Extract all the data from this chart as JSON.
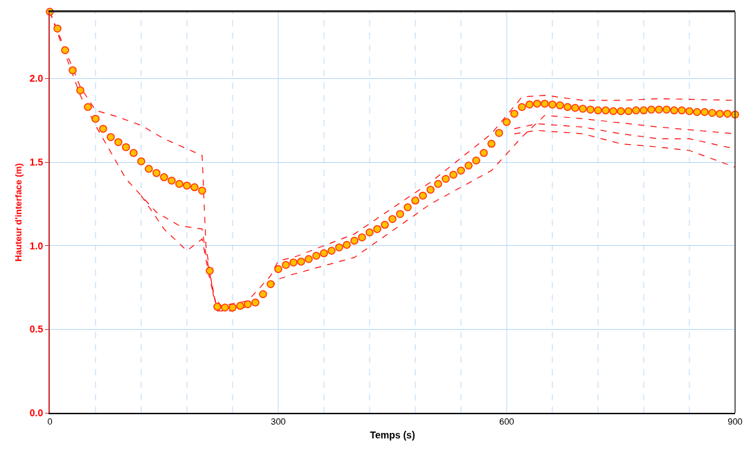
{
  "chart_data": {
    "type": "line",
    "xlabel": "Temps (s)",
    "ylabel": "Hauteur d'interface (m)",
    "xlim": [
      0,
      900
    ],
    "ylim": [
      0,
      2.4
    ],
    "xticks": [
      0,
      {
        "value": 60,
        "label": null
      },
      {
        "value": 120,
        "label": null
      },
      {
        "value": 180,
        "label": null
      },
      {
        "value": 240,
        "label": null
      },
      300,
      {
        "value": 360,
        "label": null
      },
      {
        "value": 420,
        "label": null
      },
      {
        "value": 480,
        "label": null
      },
      {
        "value": 540,
        "label": null
      },
      600,
      {
        "value": 660,
        "label": null
      },
      {
        "value": 720,
        "label": null
      },
      {
        "value": 780,
        "label": null
      },
      {
        "value": 840,
        "label": null
      },
      900
    ],
    "yticks": [
      {
        "value": 0,
        "label": "0.0"
      },
      {
        "value": 0.5,
        "label": "0.5"
      },
      {
        "value": 1.0,
        "label": "1.0"
      },
      {
        "value": 1.5,
        "label": "1.5"
      },
      {
        "value": 2.0,
        "label": "2.0"
      }
    ],
    "grid": true,
    "series": [
      {
        "color": "#ff0000",
        "line_style": "dashed",
        "marker": "none",
        "x": [
          0,
          40,
          60,
          90,
          120,
          150,
          180,
          200,
          205,
          215,
          225,
          260,
          290,
          300,
          320,
          400,
          500,
          580,
          620,
          650,
          700,
          750,
          800,
          900
        ],
        "values": [
          2.4,
          1.95,
          1.81,
          1.77,
          1.72,
          1.64,
          1.58,
          1.54,
          1.0,
          0.7,
          0.64,
          0.67,
          0.82,
          0.91,
          0.93,
          1.07,
          1.38,
          1.67,
          1.89,
          1.9,
          1.87,
          1.87,
          1.88,
          1.87
        ]
      },
      {
        "color": "#ff0000",
        "line_style": "dashed",
        "marker": "none",
        "x": [
          0,
          40,
          60,
          100,
          140,
          170,
          200,
          205,
          220,
          240,
          270,
          300,
          320,
          400,
          500,
          580,
          620,
          650,
          700,
          800,
          900
        ],
        "values": [
          2.4,
          1.9,
          1.72,
          1.4,
          1.2,
          1.12,
          1.1,
          0.95,
          0.61,
          0.61,
          0.65,
          0.8,
          0.83,
          0.93,
          1.25,
          1.45,
          1.65,
          1.78,
          1.76,
          1.71,
          1.67
        ]
      },
      {
        "color": "#ff0000",
        "line_style": "dashed",
        "marker": "none",
        "x": [
          120,
          150,
          180,
          200,
          210,
          220
        ],
        "values": [
          1.3,
          1.1,
          0.97,
          1.04,
          0.8,
          0.62
        ]
      },
      {
        "color": "#ff0000",
        "line_style": "dashed",
        "marker": "none",
        "x": [
          610,
          640,
          700,
          750,
          800,
          840,
          900
        ],
        "values": [
          1.7,
          1.73,
          1.71,
          1.67,
          1.64,
          1.64,
          1.58
        ]
      },
      {
        "color": "#ff0000",
        "line_style": "dashed",
        "marker": "none",
        "x": [
          610,
          640,
          700,
          750,
          800,
          840,
          900
        ],
        "values": [
          1.67,
          1.69,
          1.67,
          1.61,
          1.59,
          1.57,
          1.47
        ]
      },
      {
        "type": "scatter",
        "color": "#ffc000",
        "marker": "circle",
        "x": [
          0,
          10,
          20,
          30,
          40,
          50,
          60,
          70,
          80,
          90,
          100,
          110,
          120,
          130,
          140,
          150,
          160,
          170,
          180,
          190,
          200,
          210,
          220,
          230,
          240,
          250,
          260,
          270,
          280,
          290,
          300,
          310,
          320,
          330,
          340,
          350,
          360,
          370,
          380,
          390,
          400,
          410,
          420,
          430,
          440,
          450,
          460,
          470,
          480,
          490,
          500,
          510,
          520,
          530,
          540,
          550,
          560,
          570,
          580,
          590,
          600,
          610,
          620,
          630,
          640,
          650,
          660,
          670,
          680,
          690,
          700,
          710,
          720,
          730,
          740,
          750,
          760,
          770,
          780,
          790,
          800,
          810,
          820,
          830,
          840,
          850,
          860,
          870,
          880,
          890,
          900
        ],
        "values": [
          2.4,
          2.3,
          2.17,
          2.05,
          1.93,
          1.83,
          1.76,
          1.7,
          1.65,
          1.62,
          1.59,
          1.555,
          1.505,
          1.46,
          1.435,
          1.41,
          1.39,
          1.37,
          1.36,
          1.35,
          1.33,
          0.85,
          0.635,
          0.63,
          0.63,
          0.64,
          0.65,
          0.66,
          0.71,
          0.77,
          0.86,
          0.885,
          0.9,
          0.905,
          0.92,
          0.94,
          0.955,
          0.97,
          0.99,
          1.005,
          1.03,
          1.05,
          1.08,
          1.1,
          1.125,
          1.16,
          1.19,
          1.23,
          1.27,
          1.3,
          1.335,
          1.37,
          1.4,
          1.425,
          1.45,
          1.48,
          1.51,
          1.555,
          1.61,
          1.675,
          1.74,
          1.79,
          1.83,
          1.845,
          1.85,
          1.85,
          1.845,
          1.84,
          1.83,
          1.825,
          1.82,
          1.815,
          1.81,
          1.81,
          1.805,
          1.805,
          1.805,
          1.81,
          1.81,
          1.815,
          1.815,
          1.815,
          1.81,
          1.81,
          1.805,
          1.8,
          1.8,
          1.795,
          1.79,
          1.79,
          1.785
        ]
      }
    ]
  }
}
